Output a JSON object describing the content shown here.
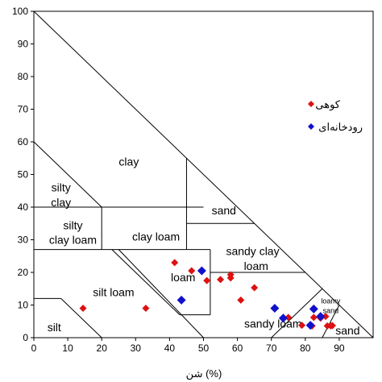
{
  "chart_data": {
    "type": "scatter",
    "title": "",
    "xlabel": "شن (%)",
    "ylabel": "",
    "xlim": [
      0,
      100
    ],
    "ylim": [
      0,
      100
    ],
    "x_ticks": [
      "0",
      "10",
      "20",
      "30",
      "40",
      "50",
      "60",
      "70",
      "80",
      "90"
    ],
    "y_ticks": [
      "0",
      "10",
      "20",
      "30",
      "40",
      "50",
      "60",
      "70",
      "80",
      "90",
      "100"
    ],
    "grid": false,
    "legend_position": "right",
    "texture_classes": [
      {
        "label": "clay",
        "x": 28,
        "y": 54
      },
      {
        "label": "silty",
        "x": 8,
        "y": 46
      },
      {
        "label": "clay",
        "x": 8,
        "y": 41.5
      },
      {
        "label": "silty",
        "x": 11.5,
        "y": 34.5
      },
      {
        "label": "clay loam",
        "x": 11.5,
        "y": 30
      },
      {
        "label": "clay loam",
        "x": 36,
        "y": 31
      },
      {
        "label": "sand",
        "x": 56,
        "y": 39
      },
      {
        "label": "sandy clay",
        "x": 64.5,
        "y": 26.5
      },
      {
        "label": "loam",
        "x": 65.5,
        "y": 22
      },
      {
        "label": "loam",
        "x": 44,
        "y": 18.5
      },
      {
        "label": "silt loam",
        "x": 23.5,
        "y": 14
      },
      {
        "label": "silt",
        "x": 6,
        "y": 3.2
      },
      {
        "label": "sandy loam",
        "x": 70.5,
        "y": 4.3
      },
      {
        "label": "loamy",
        "x": 87.5,
        "y": 11.7,
        "small": true
      },
      {
        "label": "sand",
        "x": 87.5,
        "y": 8.8,
        "small": true
      },
      {
        "label": "sand",
        "x": 92.5,
        "y": 2.2
      }
    ],
    "series": [
      {
        "name": "کوهی",
        "color": "#dd1111",
        "points": [
          [
            14.5,
            9
          ],
          [
            33,
            9
          ],
          [
            41.5,
            23
          ],
          [
            46.5,
            20.5
          ],
          [
            51,
            17.5
          ],
          [
            55,
            17.8
          ],
          [
            58,
            18.3
          ],
          [
            58,
            19.3
          ],
          [
            61,
            11.5
          ],
          [
            65,
            15.3
          ],
          [
            75,
            6.2
          ],
          [
            79,
            3.8
          ],
          [
            82,
            3.6
          ],
          [
            82.5,
            6.2
          ],
          [
            84.5,
            6
          ],
          [
            86,
            6.5
          ],
          [
            86.5,
            3.6
          ],
          [
            87.5,
            3.6
          ],
          [
            88,
            3.7
          ]
        ]
      },
      {
        "name": "رودخانه‌ای",
        "color": "#1111cc",
        "points": [
          [
            43.5,
            11.5
          ],
          [
            49.5,
            20.5
          ],
          [
            71,
            9
          ],
          [
            73.5,
            6
          ],
          [
            81.5,
            3.8
          ],
          [
            82.5,
            8.8
          ],
          [
            84.5,
            6.5
          ]
        ]
      }
    ]
  }
}
